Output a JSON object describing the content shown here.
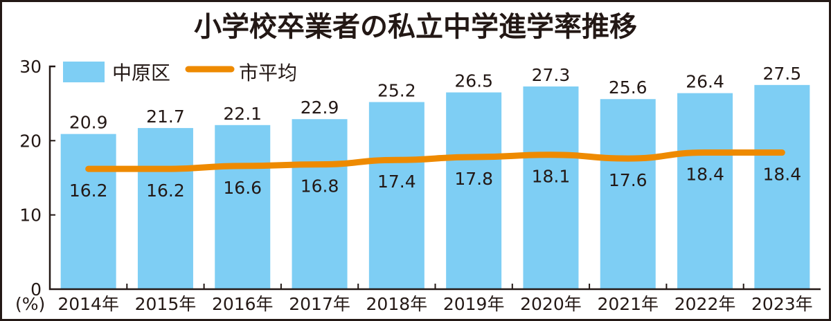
{
  "chart_data": {
    "type": "bar",
    "title": "小学校卒業者の私立中学進学率推移",
    "xlabel": "",
    "ylabel": "(%)",
    "ylim": [
      0,
      30
    ],
    "yticks": [
      0,
      10,
      20,
      30
    ],
    "categories": [
      "2014年",
      "2015年",
      "2016年",
      "2017年",
      "2018年",
      "2019年",
      "2020年",
      "2021年",
      "2022年",
      "2023年"
    ],
    "series": [
      {
        "name": "中原区",
        "type": "bar",
        "color": "#7ecef4",
        "values": [
          20.9,
          21.7,
          22.1,
          22.9,
          25.2,
          26.5,
          27.3,
          25.6,
          26.4,
          27.5
        ]
      },
      {
        "name": "市平均",
        "type": "line",
        "color": "#ee8a00",
        "values": [
          16.2,
          16.2,
          16.6,
          16.8,
          17.4,
          17.8,
          18.1,
          17.6,
          18.4,
          18.4
        ]
      }
    ],
    "legend": "top-left",
    "grid": false
  }
}
